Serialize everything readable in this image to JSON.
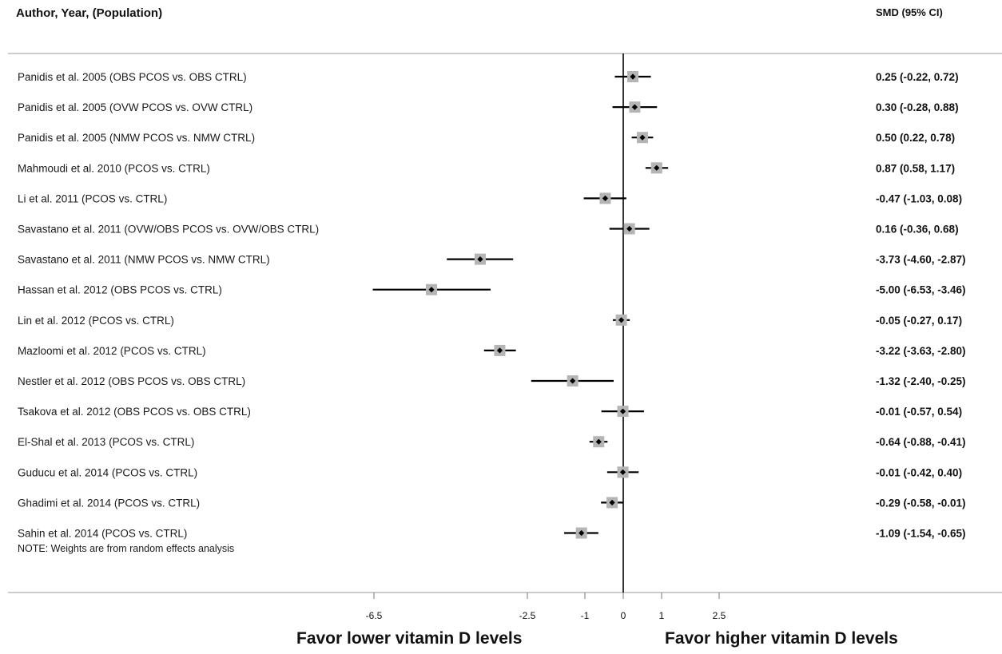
{
  "header": {
    "left": "Author, Year, (Population)",
    "right": "SMD (95% CI)"
  },
  "note": "NOTE: Weights are from random effects analysis",
  "favor": {
    "lower": "Favor lower vitamin D levels",
    "higher": "Favor higher vitamin D levels"
  },
  "chart_data": {
    "type": "forest",
    "xlabel": "",
    "null_line": 0,
    "xticks": [
      -6.5,
      -2.5,
      -1,
      0,
      1,
      2.5
    ],
    "xtick_labels": [
      "-6.5",
      "-2.5",
      "-1",
      "0",
      "1",
      "2.5"
    ],
    "colors": {
      "ci_line": "#000000",
      "box": "#b5b5b5",
      "point": "#000000"
    },
    "studies": [
      {
        "label": "Panidis et al. 2005 (OBS PCOS vs. OBS CTRL)",
        "est": 0.25,
        "lo": -0.22,
        "hi": 0.72,
        "text": "0.25 (-0.22, 0.72)"
      },
      {
        "label": "Panidis et al. 2005 (OVW PCOS vs. OVW CTRL)",
        "est": 0.3,
        "lo": -0.28,
        "hi": 0.88,
        "text": "0.30 (-0.28, 0.88)"
      },
      {
        "label": "Panidis et al. 2005 (NMW PCOS vs. NMW CTRL)",
        "est": 0.5,
        "lo": 0.22,
        "hi": 0.78,
        "text": "0.50 (0.22, 0.78)"
      },
      {
        "label": "Mahmoudi et al. 2010 (PCOS vs. CTRL)",
        "est": 0.87,
        "lo": 0.58,
        "hi": 1.17,
        "text": "0.87 (0.58, 1.17)"
      },
      {
        "label": "Li et al. 2011 (PCOS vs. CTRL)",
        "est": -0.47,
        "lo": -1.03,
        "hi": 0.08,
        "text": "-0.47 (-1.03, 0.08)"
      },
      {
        "label": "Savastano et al. 2011 (OVW/OBS PCOS vs. OVW/OBS CTRL)",
        "est": 0.16,
        "lo": -0.36,
        "hi": 0.68,
        "text": "0.16 (-0.36, 0.68)"
      },
      {
        "label": "Savastano et al. 2011 (NMW PCOS vs. NMW CTRL)",
        "est": -3.73,
        "lo": -4.6,
        "hi": -2.87,
        "text": "-3.73 (-4.60, -2.87)"
      },
      {
        "label": "Hassan et al. 2012 (OBS PCOS vs. CTRL)",
        "est": -5.0,
        "lo": -6.53,
        "hi": -3.46,
        "text": "-5.00 (-6.53, -3.46)"
      },
      {
        "label": "Lin et al. 2012 (PCOS vs. CTRL)",
        "est": -0.05,
        "lo": -0.27,
        "hi": 0.17,
        "text": "-0.05 (-0.27, 0.17)"
      },
      {
        "label": "Mazloomi et al. 2012 (PCOS vs. CTRL)",
        "est": -3.22,
        "lo": -3.63,
        "hi": -2.8,
        "text": "-3.22 (-3.63, -2.80)"
      },
      {
        "label": "Nestler et al. 2012 (OBS PCOS vs. OBS CTRL)",
        "est": -1.32,
        "lo": -2.4,
        "hi": -0.25,
        "text": "-1.32 (-2.40, -0.25)"
      },
      {
        "label": "Tsakova et al. 2012 (OBS PCOS vs. OBS CTRL)",
        "est": -0.01,
        "lo": -0.57,
        "hi": 0.54,
        "text": "-0.01 (-0.57, 0.54)"
      },
      {
        "label": "El-Shal et al. 2013 (PCOS vs. CTRL)",
        "est": -0.64,
        "lo": -0.88,
        "hi": -0.41,
        "text": "-0.64 (-0.88, -0.41)"
      },
      {
        "label": "Guducu et al. 2014 (PCOS vs. CTRL)",
        "est": -0.01,
        "lo": -0.42,
        "hi": 0.4,
        "text": "-0.01 (-0.42, 0.40)"
      },
      {
        "label": "Ghadimi et al. 2014 (PCOS vs. CTRL)",
        "est": -0.29,
        "lo": -0.58,
        "hi": -0.01,
        "text": "-0.29 (-0.58, -0.01)"
      },
      {
        "label": "Sahin et al. 2014 (PCOS vs. CTRL)",
        "est": -1.09,
        "lo": -1.54,
        "hi": -0.65,
        "text": "-1.09 (-1.54, -0.65)"
      }
    ]
  }
}
